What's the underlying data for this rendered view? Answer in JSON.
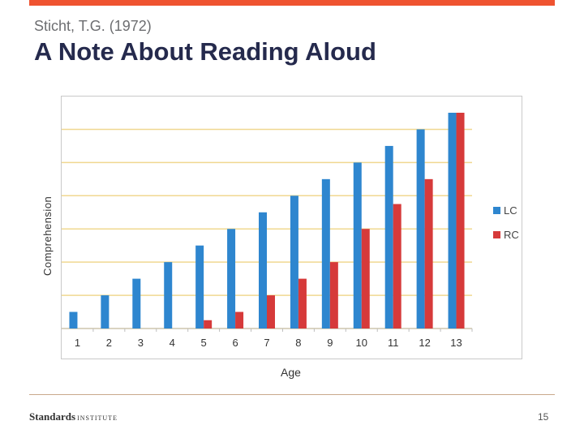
{
  "slide": {
    "subtitle": "Sticht, T.G. (1972)",
    "title": "A Note About Reading Aloud",
    "page_number": "15",
    "logo": {
      "name": "Standards",
      "suffix": "INSTITUTE"
    },
    "accent_color": "#ef5330",
    "title_color": "#252a4d"
  },
  "chart_data": {
    "type": "bar",
    "title": "",
    "xlabel": "Age",
    "ylabel": "Comprehension",
    "categories": [
      "1",
      "2",
      "3",
      "4",
      "5",
      "6",
      "7",
      "8",
      "9",
      "10",
      "11",
      "12",
      "13"
    ],
    "series": [
      {
        "name": "LC",
        "color": "#2e86cf",
        "values": [
          1,
          2,
          3,
          4,
          5,
          6,
          7,
          8,
          9,
          10,
          11,
          12,
          13
        ]
      },
      {
        "name": "RC",
        "color": "#d63a3a",
        "values": [
          0,
          0,
          0,
          0,
          0.5,
          1,
          2,
          3,
          4,
          6,
          7.5,
          9,
          13
        ]
      }
    ],
    "ylim": [
      0,
      13
    ],
    "grid": true,
    "ytick_labels_shown": false,
    "legend_position": "right"
  }
}
